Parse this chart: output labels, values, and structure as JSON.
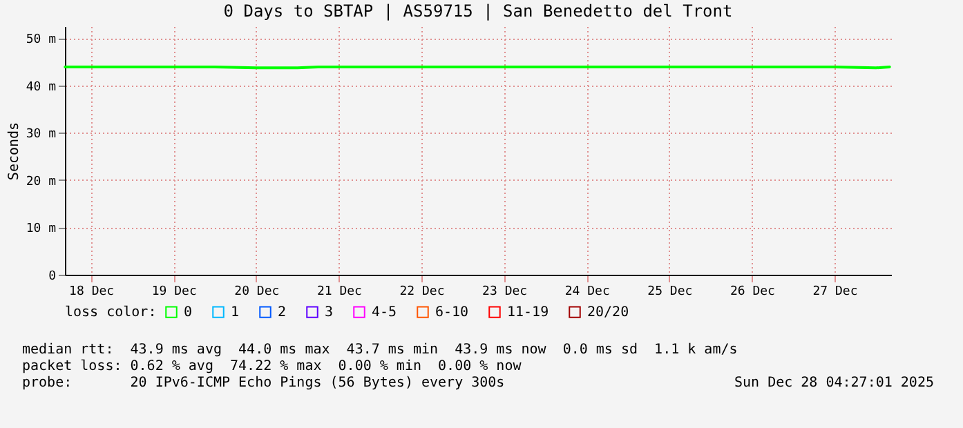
{
  "chart_data": {
    "type": "line",
    "title": "0 Days to SBTAP | AS59715 | San Benedetto del Tront",
    "ylabel": "Seconds",
    "x": [
      "2025-12-18T04:30",
      "2025-12-18T12:00",
      "2025-12-19T00:00",
      "2025-12-19T12:00",
      "2025-12-20T00:00",
      "2025-12-20T12:00",
      "2025-12-21T00:00",
      "2025-12-21T06:00",
      "2025-12-21T12:00",
      "2025-12-22T00:00",
      "2025-12-22T12:00",
      "2025-12-23T00:00",
      "2025-12-23T12:00",
      "2025-12-24T00:00",
      "2025-12-24T12:00",
      "2025-12-25T00:00",
      "2025-12-25T12:00",
      "2025-12-26T00:00",
      "2025-12-26T12:00",
      "2025-12-27T00:00",
      "2025-12-27T12:00",
      "2025-12-28T00:00",
      "2025-12-28T04:00"
    ],
    "series": [
      {
        "name": "0",
        "color": "#00ff00",
        "values": [
          43.9,
          43.9,
          43.9,
          43.9,
          43.9,
          43.7,
          43.7,
          43.9,
          43.9,
          43.9,
          43.9,
          43.9,
          43.9,
          43.9,
          43.9,
          43.9,
          43.9,
          43.9,
          43.9,
          43.9,
          43.9,
          43.7,
          43.9
        ]
      },
      {
        "name": "1",
        "color": "#00b8ff",
        "values": [
          null,
          null,
          null,
          null,
          null,
          null,
          null,
          null,
          null,
          null,
          null,
          null,
          null,
          null,
          null,
          null,
          null,
          null,
          null,
          null,
          null,
          null,
          null
        ]
      },
      {
        "name": "2",
        "color": "#0059ff",
        "values": [
          null,
          null,
          null,
          null,
          null,
          null,
          null,
          null,
          null,
          null,
          null,
          null,
          null,
          null,
          null,
          null,
          null,
          null,
          null,
          null,
          null,
          null,
          null
        ]
      },
      {
        "name": "3",
        "color": "#5e00ff",
        "values": [
          null,
          null,
          null,
          null,
          null,
          null,
          null,
          null,
          null,
          null,
          null,
          null,
          null,
          null,
          null,
          null,
          null,
          null,
          null,
          null,
          null,
          null,
          null
        ]
      },
      {
        "name": "4-5",
        "color": "#ff00ff",
        "values": [
          null,
          null,
          null,
          null,
          null,
          null,
          null,
          null,
          null,
          null,
          null,
          null,
          null,
          null,
          null,
          null,
          null,
          null,
          null,
          null,
          null,
          null,
          null
        ]
      },
      {
        "name": "6-10",
        "color": "#ff5500",
        "values": [
          null,
          null,
          null,
          null,
          null,
          null,
          null,
          null,
          null,
          null,
          null,
          null,
          null,
          null,
          null,
          null,
          null,
          null,
          null,
          null,
          null,
          null,
          null
        ]
      },
      {
        "name": "11-19",
        "color": "#ff0000",
        "values": [
          null,
          null,
          null,
          null,
          null,
          null,
          null,
          null,
          null,
          null,
          null,
          null,
          null,
          null,
          null,
          null,
          null,
          null,
          null,
          null,
          null,
          null,
          null
        ]
      },
      {
        "name": "20/20",
        "color": "#a10000",
        "values": [
          null,
          null,
          null,
          null,
          null,
          null,
          null,
          null,
          null,
          null,
          null,
          null,
          null,
          null,
          null,
          null,
          null,
          null,
          null,
          null,
          null,
          null,
          null
        ]
      }
    ],
    "xlim": [
      "2025-12-18T04:27",
      "2025-12-28T04:27"
    ],
    "xticks": [
      {
        "value": "2025-12-18T12:00",
        "label": "18 Dec"
      },
      {
        "value": "2025-12-19T12:00",
        "label": "19 Dec"
      },
      {
        "value": "2025-12-20T12:00",
        "label": "20 Dec"
      },
      {
        "value": "2025-12-21T12:00",
        "label": "21 Dec"
      },
      {
        "value": "2025-12-22T12:00",
        "label": "22 Dec"
      },
      {
        "value": "2025-12-23T12:00",
        "label": "23 Dec"
      },
      {
        "value": "2025-12-24T12:00",
        "label": "24 Dec"
      },
      {
        "value": "2025-12-25T12:00",
        "label": "25 Dec"
      },
      {
        "value": "2025-12-26T12:00",
        "label": "26 Dec"
      },
      {
        "value": "2025-12-27T12:00",
        "label": "27 Dec"
      }
    ],
    "ylim": [
      0,
      52.5
    ],
    "yticks": [
      0,
      {
        "value": 10,
        "label": "10 m"
      },
      {
        "value": 20,
        "label": "20 m"
      },
      {
        "value": 30,
        "label": "30 m"
      },
      {
        "value": 40,
        "label": "40 m"
      },
      {
        "value": 50,
        "label": "50 m"
      }
    ],
    "grid": true,
    "legend": "bottom",
    "legend_title": "loss color:",
    "line_style": "solid",
    "marker": "none",
    "annotations": [
      "median rtt:  43.9 ms avg  44.0 ms max  43.7 ms min  43.9 ms now  0.0 ms sd  1.1 k am/s",
      "packet loss: 0.62 % avg  74.22 % max  0.00 % min  0.00 % now",
      "probe:       20 IPv6-ICMP Echo Pings (56 Bytes) every 300s",
      "Sun Dec 28 04:27:01 2025"
    ]
  }
}
